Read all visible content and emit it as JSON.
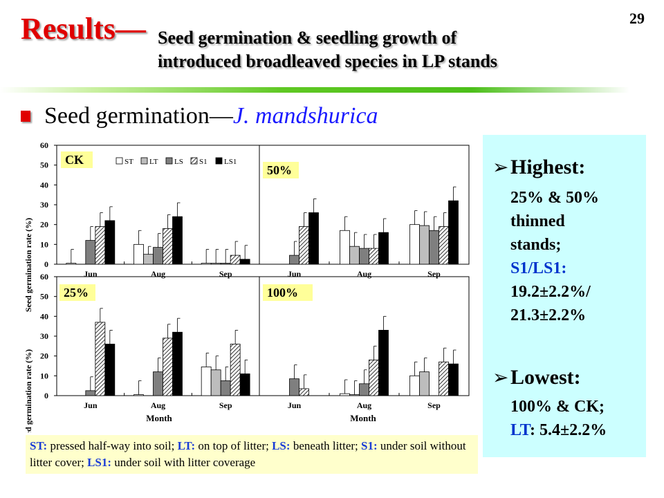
{
  "slide": {
    "title_main": "Results—",
    "title_sub_line1": "Seed germination & seedling growth of",
    "title_sub_line2": "introduced broadleaved species in LP stands",
    "page_number": "29",
    "heading_prefix": "Seed germination—",
    "heading_species": "J.  mandshurica"
  },
  "panel": {
    "p1_head": "Highest:",
    "p1_l1": "25% & 50%",
    "p1_l2": "thinned",
    "p1_l3": "stands;",
    "p1_l4": "S1/LS1:",
    "p1_l5": "19.2±2.2%/",
    "p1_l6": "21.3±2.2%",
    "p2_head": "Lowest:",
    "p2_l1": "100% & CK;",
    "p2_l2_a": "LT",
    "p2_l2_b": ": 5.4±2.2%"
  },
  "note": {
    "st_k": "ST:",
    "st_v": " pressed half-way into soil; ",
    "lt_k": "LT:",
    "lt_v": " on top of litter; ",
    "ls_k": "LS:",
    "ls_v": " beneath litter; ",
    "s1_k": "S1:",
    "s1_v": " under soil without litter cover; ",
    "ls1_k": "LS1:",
    "ls1_v": " under soil with litter coverage"
  },
  "colors": {
    "title_red": "#e00000",
    "panel_bg": "#ccffff",
    "note_bg": "#ffffcc",
    "label_bg": "#ffff99",
    "blue": "#0033cc"
  },
  "chart_data": {
    "type": "bar",
    "ylabel": "Seed germination rate (%)",
    "xlabel": "Month",
    "categories": [
      "Jun",
      "Aug",
      "Sep"
    ],
    "ylim": [
      0,
      60
    ],
    "yticks": [
      "0",
      "10",
      "20",
      "30",
      "40",
      "50",
      "60"
    ],
    "legend": [
      "ST",
      "LT",
      "LS",
      "S1",
      "LS1"
    ],
    "legend_position": "top, CK panel",
    "series_colors": [
      "#ffffff",
      "#bdbdbd",
      "#7f7f7f",
      "hatched",
      "#000000"
    ],
    "panels": [
      {
        "label": "CK",
        "values": [
          [
            0.5,
            0,
            12,
            19,
            22
          ],
          [
            10,
            5,
            8.5,
            18,
            24
          ],
          [
            0.5,
            0.5,
            0.5,
            4.5,
            2.5
          ]
        ],
        "errors": [
          [
            7,
            0,
            7,
            7,
            7
          ],
          [
            7,
            4,
            7,
            7,
            7
          ],
          [
            7,
            7,
            7,
            7,
            7
          ]
        ]
      },
      {
        "label": "50%",
        "values": [
          [
            0,
            0,
            4.5,
            19,
            26
          ],
          [
            17,
            9,
            8,
            8,
            16
          ],
          [
            20,
            19.5,
            17,
            19,
            32
          ]
        ],
        "errors": [
          [
            0,
            0,
            7,
            7,
            7
          ],
          [
            7,
            7,
            7,
            7,
            7
          ],
          [
            7,
            7,
            7,
            7,
            7
          ]
        ]
      },
      {
        "label": "25%",
        "values": [
          [
            0,
            0,
            2.5,
            37,
            26
          ],
          [
            0.5,
            0,
            12,
            29,
            32
          ],
          [
            14.5,
            13,
            7.5,
            26,
            11
          ]
        ],
        "errors": [
          [
            0,
            0,
            7,
            7,
            7
          ],
          [
            7,
            0,
            7,
            7,
            7
          ],
          [
            7,
            7,
            7,
            7,
            7
          ]
        ]
      },
      {
        "label": "100%",
        "values": [
          [
            0,
            0,
            8.5,
            3.5,
            0
          ],
          [
            1,
            0.5,
            6,
            18,
            33
          ],
          [
            10,
            12,
            0,
            17,
            16
          ]
        ],
        "errors": [
          [
            0,
            0,
            7,
            7,
            0
          ],
          [
            7,
            7,
            7,
            7,
            7
          ],
          [
            7,
            7,
            0,
            7,
            7
          ]
        ]
      }
    ]
  }
}
